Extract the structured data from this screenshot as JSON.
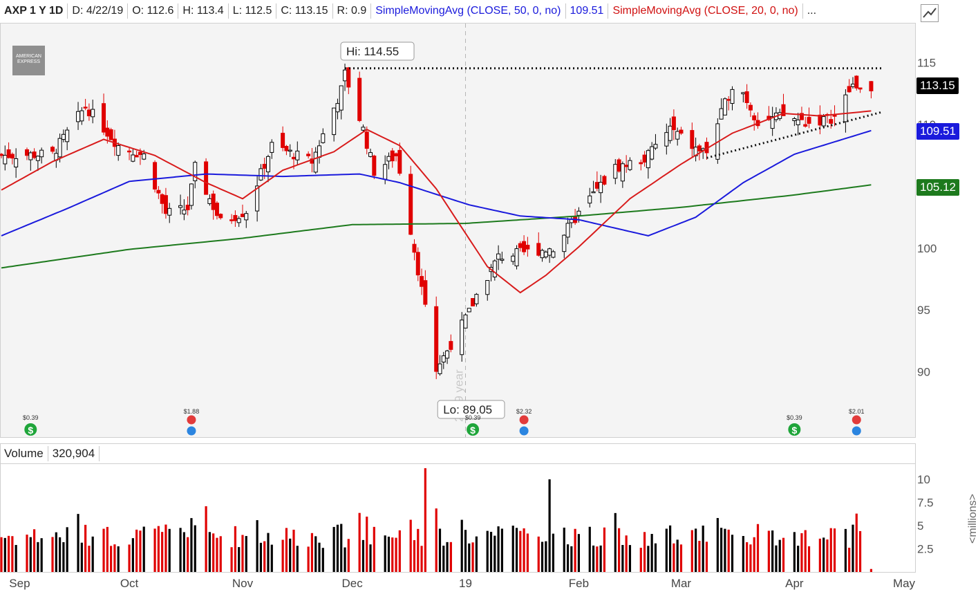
{
  "header": {
    "symbol": "AXP 1 Y 1D",
    "date": "D: 4/22/19",
    "open": "O: 112.6",
    "high": "H: 113.4",
    "low": "L: 112.5",
    "close": "C: 113.15",
    "range": "R: 0.9",
    "sma50_label": "SimpleMovingAvg (CLOSE, 50, 0, no)",
    "sma50_value": "109.51",
    "sma20_label": "SimpleMovingAvg (CLOSE, 20, 0, no)",
    "more": "..."
  },
  "logo_text": "AMERICAN EXPRESS",
  "badges": {
    "close": "113.15",
    "sma50": "109.51",
    "sma200": "105.12"
  },
  "annotations": {
    "hi": "Hi: 114.55",
    "lo": "Lo: 89.05",
    "watermark": "2019 year"
  },
  "events": [
    {
      "date": "2018-09-04",
      "label": "$0.39",
      "type": "dividend"
    },
    {
      "date": "2018-10-18",
      "label": "$1.88",
      "type": "earnings"
    },
    {
      "date": "2019-01-03",
      "label": "$0.39",
      "type": "dividend"
    },
    {
      "date": "2019-01-17",
      "label": "$2.32",
      "type": "earnings"
    },
    {
      "date": "2019-04-01",
      "label": "$0.39",
      "type": "dividend"
    },
    {
      "date": "2019-04-18",
      "label": "$2.01",
      "type": "earnings"
    }
  ],
  "volume_header": {
    "label": "Volume",
    "value": "320,904"
  },
  "colors": {
    "up": "#000000",
    "down": "#e00000",
    "sma20": "#d81b1b",
    "sma50": "#1a1adc",
    "sma200": "#1d7a1d"
  },
  "chart_data": {
    "type": "candlestick",
    "title": "AXP 1 Y 1D",
    "x_ticks": [
      "Sep",
      "Oct",
      "Nov",
      "Dec",
      "19",
      "Feb",
      "Mar",
      "Apr",
      "May"
    ],
    "x_tick_dates": [
      "2018-09-01",
      "2018-10-01",
      "2018-11-01",
      "2018-12-01",
      "2019-01-01",
      "2019-02-01",
      "2019-03-01",
      "2019-04-01",
      "2019-05-01"
    ],
    "y_ticks": [
      90,
      95,
      100,
      105,
      110,
      115
    ],
    "ylim": [
      86.5,
      117
    ],
    "volume_ticks": [
      "2.5",
      "5",
      "7.5",
      "10"
    ],
    "volume_tick_values": [
      2.5,
      5,
      7.5,
      10
    ],
    "volume_ylim": [
      0,
      11.5
    ],
    "volume_unit": "<millions>",
    "close_anchors": [
      [
        "2018-08-27",
        107.5
      ],
      [
        "2018-09-10",
        107.6
      ],
      [
        "2018-09-19",
        111.5
      ],
      [
        "2018-09-28",
        108.3
      ],
      [
        "2018-10-05",
        107.5
      ],
      [
        "2018-10-11",
        102.8
      ],
      [
        "2018-10-17",
        103.2
      ],
      [
        "2018-10-19",
        106.5
      ],
      [
        "2018-10-26",
        102.1
      ],
      [
        "2018-11-02",
        103.0
      ],
      [
        "2018-11-09",
        108.3
      ],
      [
        "2018-11-20",
        107.0
      ],
      [
        "2018-11-28",
        112.8
      ],
      [
        "2018-11-29",
        114.1
      ],
      [
        "2018-12-04",
        109.6
      ],
      [
        "2018-12-07",
        106.2
      ],
      [
        "2018-12-13",
        107.5
      ],
      [
        "2018-12-14",
        106.3
      ],
      [
        "2018-12-24",
        90.2
      ],
      [
        "2019-01-02",
        94.8
      ],
      [
        "2019-01-04",
        96.2
      ],
      [
        "2019-01-10",
        99.3
      ],
      [
        "2019-01-18",
        99.7
      ],
      [
        "2019-01-25",
        100.0
      ],
      [
        "2019-02-04",
        104.0
      ],
      [
        "2019-02-11",
        106.5
      ],
      [
        "2019-02-19",
        107.2
      ],
      [
        "2019-02-26",
        109.7
      ],
      [
        "2019-03-05",
        108.0
      ],
      [
        "2019-03-08",
        107.8
      ],
      [
        "2019-03-15",
        113.2
      ],
      [
        "2019-03-18",
        112.6
      ],
      [
        "2019-03-22",
        110.2
      ],
      [
        "2019-03-29",
        110.7
      ],
      [
        "2019-04-05",
        110.1
      ],
      [
        "2019-04-12",
        110.6
      ],
      [
        "2019-04-17",
        113.2
      ],
      [
        "2019-04-22",
        113.15
      ]
    ],
    "sma20_anchors": [
      [
        "2018-08-27",
        104.7
      ],
      [
        "2018-09-10",
        107.0
      ],
      [
        "2018-09-24",
        108.8
      ],
      [
        "2018-10-08",
        107.5
      ],
      [
        "2018-10-22",
        105.3
      ],
      [
        "2018-11-01",
        104.0
      ],
      [
        "2018-11-12",
        106.3
      ],
      [
        "2018-11-26",
        107.8
      ],
      [
        "2018-12-05",
        109.6
      ],
      [
        "2018-12-14",
        108.3
      ],
      [
        "2018-12-24",
        104.8
      ],
      [
        "2019-01-07",
        98.5
      ],
      [
        "2019-01-16",
        96.4
      ],
      [
        "2019-01-23",
        97.8
      ],
      [
        "2019-02-01",
        100.1
      ],
      [
        "2019-02-15",
        104.0
      ],
      [
        "2019-03-01",
        106.8
      ],
      [
        "2019-03-15",
        109.3
      ],
      [
        "2019-03-29",
        110.9
      ],
      [
        "2019-04-08",
        110.7
      ],
      [
        "2019-04-22",
        111.1
      ]
    ],
    "sma50_anchors": [
      [
        "2018-08-27",
        101.0
      ],
      [
        "2018-09-14",
        103.2
      ],
      [
        "2018-10-01",
        105.4
      ],
      [
        "2018-10-22",
        106.0
      ],
      [
        "2018-11-12",
        105.8
      ],
      [
        "2018-12-03",
        106.0
      ],
      [
        "2018-12-14",
        105.3
      ],
      [
        "2019-01-02",
        103.5
      ],
      [
        "2019-01-16",
        102.6
      ],
      [
        "2019-02-01",
        102.3
      ],
      [
        "2019-02-20",
        101.0
      ],
      [
        "2019-03-05",
        102.5
      ],
      [
        "2019-03-18",
        105.3
      ],
      [
        "2019-04-01",
        107.6
      ],
      [
        "2019-04-22",
        109.51
      ]
    ],
    "sma200_anchors": [
      [
        "2018-08-27",
        98.4
      ],
      [
        "2018-10-01",
        99.9
      ],
      [
        "2018-11-01",
        100.8
      ],
      [
        "2018-12-01",
        101.9
      ],
      [
        "2019-01-01",
        102.0
      ],
      [
        "2019-02-01",
        102.6
      ],
      [
        "2019-03-01",
        103.3
      ],
      [
        "2019-04-01",
        104.3
      ],
      [
        "2019-04-22",
        105.12
      ]
    ],
    "resistance": {
      "from": "2018-11-29",
      "to": "2019-04-22",
      "value": 114.55
    },
    "support": {
      "from": "2019-03-08",
      "to": "2019-04-22",
      "y_from": 107.3,
      "y_to": 111.0
    },
    "hi": {
      "date": "2018-11-29",
      "value": 114.55
    },
    "lo": {
      "date": "2018-12-24",
      "value": 89.05
    },
    "vol_spikes": [
      [
        "2018-12-21",
        11.2
      ],
      [
        "2019-01-24",
        10.0
      ],
      [
        "2019-04-18",
        6.3
      ]
    ]
  }
}
